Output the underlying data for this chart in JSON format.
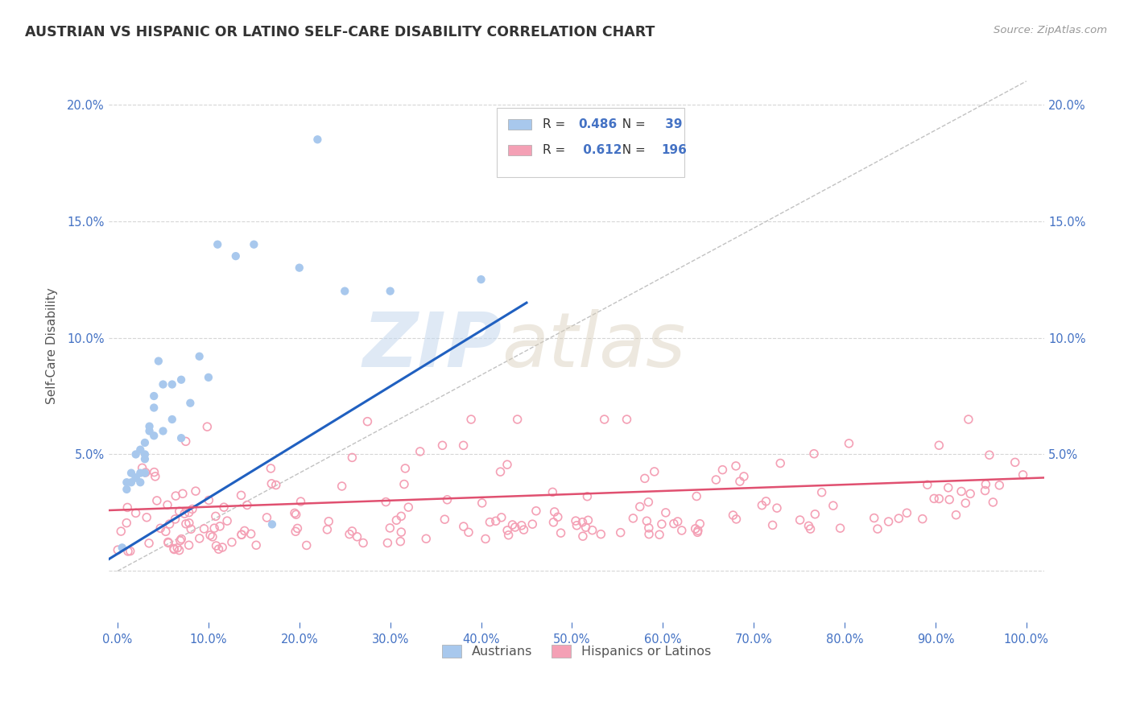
{
  "title": "AUSTRIAN VS HISPANIC OR LATINO SELF-CARE DISABILITY CORRELATION CHART",
  "source": "Source: ZipAtlas.com",
  "ylabel": "Self-Care Disability",
  "xlim": [
    -0.01,
    1.02
  ],
  "ylim": [
    -0.022,
    0.215
  ],
  "xtick_vals": [
    0.0,
    0.1,
    0.2,
    0.3,
    0.4,
    0.5,
    0.6,
    0.7,
    0.8,
    0.9,
    1.0
  ],
  "ytick_vals": [
    0.0,
    0.05,
    0.1,
    0.15,
    0.2
  ],
  "ytick_labels": [
    "",
    "5.0%",
    "10.0%",
    "15.0%",
    "20.0%"
  ],
  "austrian_color": "#A8C8ED",
  "hispanic_color": "#F4A0B5",
  "austrian_line_color": "#2060C0",
  "hispanic_line_color": "#E05070",
  "diagonal_color": "#BBBBBB",
  "R_austrian": "0.486",
  "N_austrian": "39",
  "R_hispanic": "0.612",
  "N_hispanic": "196",
  "legend_label_austrians": "Austrians",
  "legend_label_hispanics": "Hispanics or Latinos",
  "watermark_zip": "ZIP",
  "watermark_atlas": "atlas",
  "background_color": "#FFFFFF",
  "grid_color": "#CCCCCC",
  "title_color": "#333333",
  "axis_label_color": "#555555",
  "tick_color": "#4472C4",
  "legend_text_color": "#4472C4",
  "legend_label_color": "#333333",
  "austrian_scatter_x": [
    0.005,
    0.01,
    0.01,
    0.015,
    0.015,
    0.02,
    0.02,
    0.02,
    0.025,
    0.025,
    0.025,
    0.03,
    0.03,
    0.03,
    0.03,
    0.035,
    0.035,
    0.04,
    0.04,
    0.04,
    0.045,
    0.05,
    0.05,
    0.06,
    0.06,
    0.07,
    0.07,
    0.08,
    0.09,
    0.1,
    0.11,
    0.13,
    0.15,
    0.17,
    0.2,
    0.22,
    0.25,
    0.3,
    0.4
  ],
  "austrian_scatter_y": [
    0.01,
    0.035,
    0.038,
    0.038,
    0.042,
    0.04,
    0.04,
    0.05,
    0.042,
    0.038,
    0.052,
    0.055,
    0.05,
    0.048,
    0.042,
    0.062,
    0.06,
    0.058,
    0.07,
    0.075,
    0.09,
    0.06,
    0.08,
    0.08,
    0.065,
    0.082,
    0.057,
    0.072,
    0.092,
    0.083,
    0.14,
    0.135,
    0.14,
    0.02,
    0.13,
    0.185,
    0.12,
    0.12,
    0.125
  ],
  "austrian_trend_x": [
    -0.01,
    0.45
  ],
  "austrian_trend_y": [
    0.005,
    0.115
  ],
  "hispanic_trend_x": [
    -0.01,
    1.02
  ],
  "hispanic_trend_y": [
    0.026,
    0.04
  ]
}
